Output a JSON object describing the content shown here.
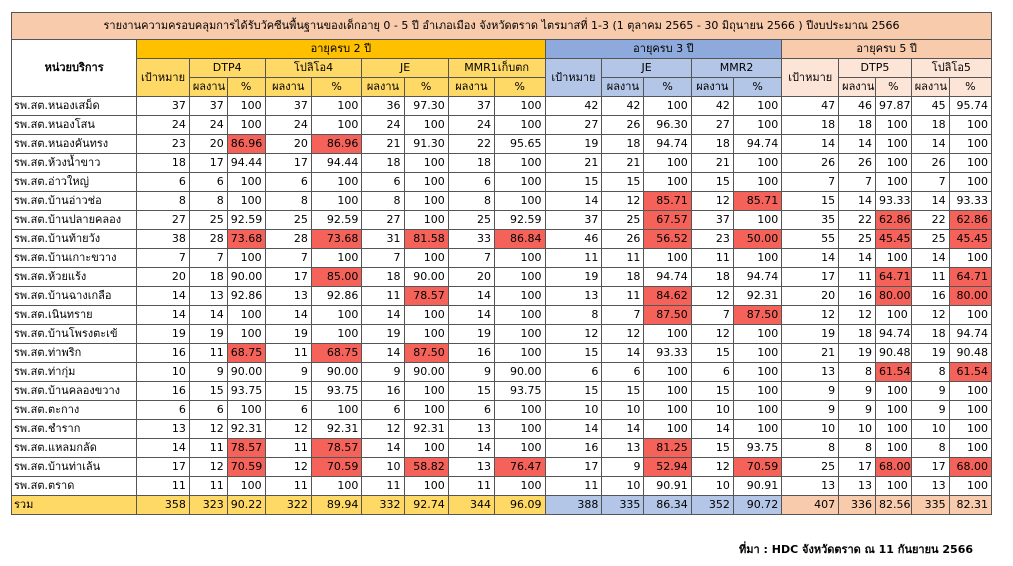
{
  "title": "รายงานความครอบคลุมการได้รับวัคซีนพื้นฐานของเด็กอายุ 0 - 5 ปี อำเภอเมือง จังหวัดตราด ไตรมาสที่ 1-3 (1 ตุลาคม 2565 - 30 มิถุนายน 2566 ) ปีงบประมาณ 2566",
  "headers": {
    "unit": "หน่วยบริการ",
    "age2": "อายุครบ 2 ปี",
    "age3": "อายุครบ 3 ปี",
    "age5": "อายุครบ 5 ปี",
    "target": "เป้าหมาย",
    "result": "ผลงาน",
    "percent": "%",
    "dtp4": "DTP4",
    "polio4": "โปลิโอ4",
    "je": "JE",
    "mmr1": "MMR1เก็บตก",
    "mmr2": "MMR2",
    "dtp5": "DTP5",
    "polio5": "โปลิโอ5"
  },
  "colors": {
    "age2": "#ffc000",
    "age3": "#8ea9db",
    "age5": "#f8cbad",
    "below_target": "#f4625a"
  },
  "rows": [
    {
      "name": "รพ.สต.หนองเสม็ด",
      "v": [
        "37",
        "37",
        "100",
        "37",
        "100",
        "36",
        "97.30",
        "37",
        "100",
        "42",
        "42",
        "100",
        "42",
        "100",
        "47",
        "46",
        "97.87",
        "45",
        "95.74"
      ]
    },
    {
      "name": "รพ.สต.หนองโสน",
      "v": [
        "24",
        "24",
        "100",
        "24",
        "100",
        "24",
        "100",
        "24",
        "100",
        "27",
        "26",
        "96.30",
        "27",
        "100",
        "18",
        "18",
        "100",
        "18",
        "100"
      ]
    },
    {
      "name": "รพ.สต.หนองคันทรง",
      "v": [
        "23",
        "20",
        "86.96",
        "20",
        "86.96",
        "21",
        "91.30",
        "22",
        "95.65",
        "19",
        "18",
        "94.74",
        "18",
        "94.74",
        "14",
        "14",
        "100",
        "14",
        "100"
      ]
    },
    {
      "name": "รพ.สต.ห้วงน้ำขาว",
      "v": [
        "18",
        "17",
        "94.44",
        "17",
        "94.44",
        "18",
        "100",
        "18",
        "100",
        "21",
        "21",
        "100",
        "21",
        "100",
        "26",
        "26",
        "100",
        "26",
        "100"
      ]
    },
    {
      "name": "รพ.สต.อ่าวใหญ่",
      "v": [
        "6",
        "6",
        "100",
        "6",
        "100",
        "6",
        "100",
        "6",
        "100",
        "15",
        "15",
        "100",
        "15",
        "100",
        "7",
        "7",
        "100",
        "7",
        "100"
      ]
    },
    {
      "name": "รพ.สต.บ้านอ่าวช่อ",
      "v": [
        "8",
        "8",
        "100",
        "8",
        "100",
        "8",
        "100",
        "8",
        "100",
        "14",
        "12",
        "85.71",
        "12",
        "85.71",
        "15",
        "14",
        "93.33",
        "14",
        "93.33"
      ]
    },
    {
      "name": "รพ.สต.บ้านปลายคลอง",
      "v": [
        "27",
        "25",
        "92.59",
        "25",
        "92.59",
        "27",
        "100",
        "25",
        "92.59",
        "37",
        "25",
        "67.57",
        "37",
        "100",
        "35",
        "22",
        "62.86",
        "22",
        "62.86"
      ]
    },
    {
      "name": "รพ.สต.บ้านท้ายวัง",
      "v": [
        "38",
        "28",
        "73.68",
        "28",
        "73.68",
        "31",
        "81.58",
        "33",
        "86.84",
        "46",
        "26",
        "56.52",
        "23",
        "50.00",
        "55",
        "25",
        "45.45",
        "25",
        "45.45"
      ]
    },
    {
      "name": "รพ.สต.บ้านเกาะขวาง",
      "v": [
        "7",
        "7",
        "100",
        "7",
        "100",
        "7",
        "100",
        "7",
        "100",
        "11",
        "11",
        "100",
        "11",
        "100",
        "14",
        "14",
        "100",
        "14",
        "100"
      ]
    },
    {
      "name": "รพ.สต.ห้วยแร้ง",
      "v": [
        "20",
        "18",
        "90.00",
        "17",
        "85.00",
        "18",
        "90.00",
        "20",
        "100",
        "19",
        "18",
        "94.74",
        "18",
        "94.74",
        "17",
        "11",
        "64.71",
        "11",
        "64.71"
      ]
    },
    {
      "name": "รพ.สต.บ้านฉางเกลือ",
      "v": [
        "14",
        "13",
        "92.86",
        "13",
        "92.86",
        "11",
        "78.57",
        "14",
        "100",
        "13",
        "11",
        "84.62",
        "12",
        "92.31",
        "20",
        "16",
        "80.00",
        "16",
        "80.00"
      ]
    },
    {
      "name": "รพ.สต.เนินทราย",
      "v": [
        "14",
        "14",
        "100",
        "14",
        "100",
        "14",
        "100",
        "14",
        "100",
        "8",
        "7",
        "87.50",
        "7",
        "87.50",
        "12",
        "12",
        "100",
        "12",
        "100"
      ]
    },
    {
      "name": "รพ.สต.บ้านโพรงตะเข้",
      "v": [
        "19",
        "19",
        "100",
        "19",
        "100",
        "19",
        "100",
        "19",
        "100",
        "12",
        "12",
        "100",
        "12",
        "100",
        "19",
        "18",
        "94.74",
        "18",
        "94.74"
      ]
    },
    {
      "name": "รพ.สต.ท่าพริก",
      "v": [
        "16",
        "11",
        "68.75",
        "11",
        "68.75",
        "14",
        "87.50",
        "16",
        "100",
        "15",
        "14",
        "93.33",
        "15",
        "100",
        "21",
        "19",
        "90.48",
        "19",
        "90.48"
      ]
    },
    {
      "name": "รพ.สต.ท่ากุ่ม",
      "v": [
        "10",
        "9",
        "90.00",
        "9",
        "90.00",
        "9",
        "90.00",
        "9",
        "90.00",
        "6",
        "6",
        "100",
        "6",
        "100",
        "13",
        "8",
        "61.54",
        "8",
        "61.54"
      ]
    },
    {
      "name": "รพ.สต.บ้านคลองขวาง",
      "v": [
        "16",
        "15",
        "93.75",
        "15",
        "93.75",
        "16",
        "100",
        "15",
        "93.75",
        "15",
        "15",
        "100",
        "15",
        "100",
        "9",
        "9",
        "100",
        "9",
        "100"
      ]
    },
    {
      "name": "รพ.สต.ตะกาง",
      "v": [
        "6",
        "6",
        "100",
        "6",
        "100",
        "6",
        "100",
        "6",
        "100",
        "10",
        "10",
        "100",
        "10",
        "100",
        "9",
        "9",
        "100",
        "9",
        "100"
      ]
    },
    {
      "name": "รพ.สต.ชำราก",
      "v": [
        "13",
        "12",
        "92.31",
        "12",
        "92.31",
        "12",
        "92.31",
        "13",
        "100",
        "14",
        "14",
        "100",
        "14",
        "100",
        "10",
        "10",
        "100",
        "10",
        "100"
      ]
    },
    {
      "name": "รพ.สต.แหลมกลัด",
      "v": [
        "14",
        "11",
        "78.57",
        "11",
        "78.57",
        "14",
        "100",
        "14",
        "100",
        "16",
        "13",
        "81.25",
        "15",
        "93.75",
        "8",
        "8",
        "100",
        "8",
        "100"
      ]
    },
    {
      "name": "รพ.สต.บ้านท่าเล้น",
      "v": [
        "17",
        "12",
        "70.59",
        "12",
        "70.59",
        "10",
        "58.82",
        "13",
        "76.47",
        "17",
        "9",
        "52.94",
        "12",
        "70.59",
        "25",
        "17",
        "68.00",
        "17",
        "68.00"
      ]
    },
    {
      "name": "รพ.สต.ตราด",
      "v": [
        "11",
        "11",
        "100",
        "11",
        "100",
        "11",
        "100",
        "11",
        "100",
        "11",
        "10",
        "90.91",
        "10",
        "90.91",
        "13",
        "13",
        "100",
        "13",
        "100"
      ]
    }
  ],
  "total": {
    "name": "รวม",
    "v": [
      "358",
      "323",
      "90.22",
      "322",
      "89.94",
      "332",
      "92.74",
      "344",
      "96.09",
      "388",
      "335",
      "86.34",
      "352",
      "90.72",
      "407",
      "336",
      "82.56",
      "335",
      "82.31"
    ]
  },
  "source": "ที่มา : HDC จังหวัดตราด ณ 11 กันยายน 2566"
}
